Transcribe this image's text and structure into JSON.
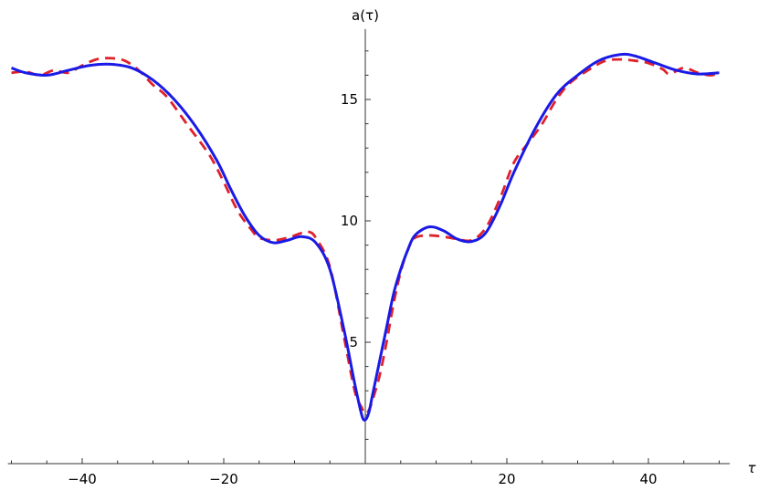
{
  "chart_data": {
    "type": "line",
    "title": "",
    "xlabel": "τ",
    "ylabel": "a(τ)",
    "xlim": [
      -50.5,
      51.5
    ],
    "ylim": [
      0.0,
      17.9
    ],
    "x_ticks": [
      -40,
      -20,
      20,
      40
    ],
    "x_tick_labels": [
      "−40",
      "−20",
      "20",
      "40"
    ],
    "y_ticks": [
      5,
      10,
      15
    ],
    "y_tick_labels": [
      "5",
      "10",
      "15"
    ],
    "grid": false,
    "legend": "none",
    "series": [
      {
        "color": "#1a1ae6",
        "style": "solid",
        "points": [
          [
            -50,
            16.3
          ],
          [
            -48,
            16.1
          ],
          [
            -45,
            16.0
          ],
          [
            -42,
            16.2
          ],
          [
            -39,
            16.4
          ],
          [
            -36,
            16.45
          ],
          [
            -33,
            16.3
          ],
          [
            -30,
            15.8
          ],
          [
            -27,
            15.0
          ],
          [
            -24,
            13.9
          ],
          [
            -21,
            12.5
          ],
          [
            -19,
            11.3
          ],
          [
            -17,
            10.2
          ],
          [
            -15,
            9.4
          ],
          [
            -13,
            9.1
          ],
          [
            -11,
            9.2
          ],
          [
            -9,
            9.35
          ],
          [
            -7,
            9.1
          ],
          [
            -5,
            8.0
          ],
          [
            -3,
            5.5
          ],
          [
            -1.5,
            3.3
          ],
          [
            -0.5,
            2.0
          ],
          [
            0,
            1.8
          ],
          [
            0.5,
            2.1
          ],
          [
            1,
            2.8
          ],
          [
            2,
            4.2
          ],
          [
            3,
            5.6
          ],
          [
            4,
            7.0
          ],
          [
            5,
            8.0
          ],
          [
            6,
            8.8
          ],
          [
            7,
            9.4
          ],
          [
            9,
            9.75
          ],
          [
            11,
            9.6
          ],
          [
            13,
            9.25
          ],
          [
            15,
            9.15
          ],
          [
            17,
            9.5
          ],
          [
            19,
            10.6
          ],
          [
            21,
            12.0
          ],
          [
            24,
            13.8
          ],
          [
            27,
            15.2
          ],
          [
            30,
            16.0
          ],
          [
            33,
            16.6
          ],
          [
            36,
            16.85
          ],
          [
            38,
            16.8
          ],
          [
            41,
            16.5
          ],
          [
            44,
            16.2
          ],
          [
            47,
            16.05
          ],
          [
            50,
            16.1
          ]
        ]
      },
      {
        "color": "#e0202a",
        "style": "dashed",
        "points": [
          [
            -50,
            16.1
          ],
          [
            -48,
            16.15
          ],
          [
            -46,
            16.0
          ],
          [
            -44,
            16.2
          ],
          [
            -42,
            16.1
          ],
          [
            -40,
            16.4
          ],
          [
            -38,
            16.65
          ],
          [
            -36,
            16.7
          ],
          [
            -34,
            16.6
          ],
          [
            -32,
            16.2
          ],
          [
            -30,
            15.6
          ],
          [
            -28,
            15.1
          ],
          [
            -25,
            13.9
          ],
          [
            -22,
            12.7
          ],
          [
            -20,
            11.6
          ],
          [
            -18,
            10.4
          ],
          [
            -16,
            9.6
          ],
          [
            -15,
            9.3
          ],
          [
            -13,
            9.2
          ],
          [
            -11,
            9.3
          ],
          [
            -9,
            9.5
          ],
          [
            -8,
            9.55
          ],
          [
            -7,
            9.3
          ],
          [
            -5,
            8.1
          ],
          [
            -3,
            5.2
          ],
          [
            -1.5,
            3.0
          ],
          [
            -0.5,
            2.3
          ],
          [
            0,
            2.05
          ],
          [
            0.5,
            2.2
          ],
          [
            1,
            2.6
          ],
          [
            2,
            3.6
          ],
          [
            3,
            5.0
          ],
          [
            4,
            6.6
          ],
          [
            5,
            7.9
          ],
          [
            6,
            8.8
          ],
          [
            7,
            9.3
          ],
          [
            9,
            9.4
          ],
          [
            11,
            9.35
          ],
          [
            13,
            9.25
          ],
          [
            15,
            9.2
          ],
          [
            17,
            9.7
          ],
          [
            19,
            10.9
          ],
          [
            21,
            12.4
          ],
          [
            23,
            13.2
          ],
          [
            25,
            14.0
          ],
          [
            27,
            15.0
          ],
          [
            29,
            15.7
          ],
          [
            32,
            16.3
          ],
          [
            34,
            16.6
          ],
          [
            36,
            16.65
          ],
          [
            38,
            16.6
          ],
          [
            40,
            16.5
          ],
          [
            42,
            16.25
          ],
          [
            43,
            16.05
          ],
          [
            45,
            16.3
          ],
          [
            47,
            16.1
          ],
          [
            49,
            16.0
          ],
          [
            50,
            16.2
          ]
        ]
      }
    ]
  }
}
